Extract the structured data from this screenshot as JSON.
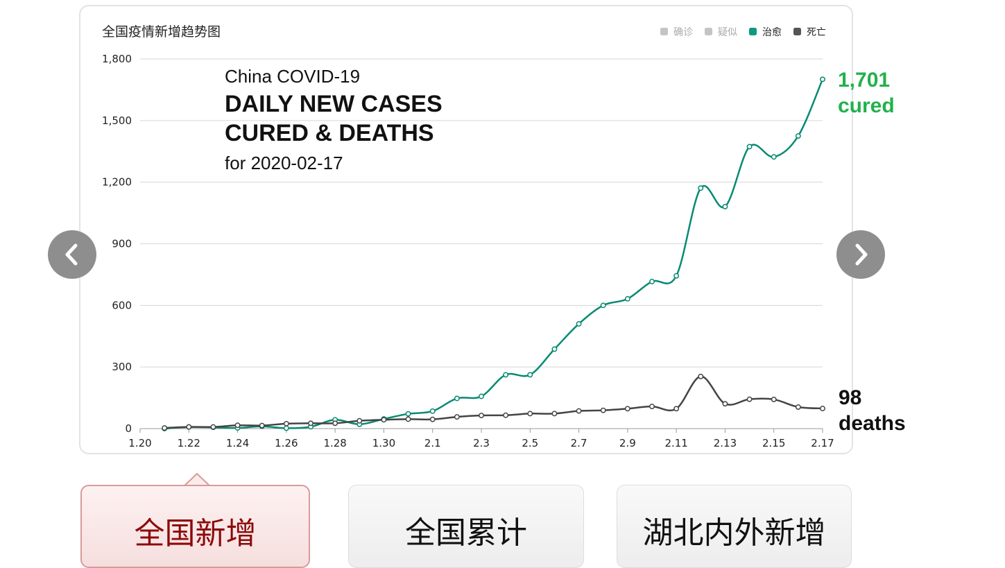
{
  "chart_data": {
    "type": "line",
    "title": "全国疫情新增趋势图",
    "annotation": {
      "line1": "China COVID-19",
      "line2": "DAILY NEW CASES",
      "line3": "CURED & DEATHS",
      "line4": "for 2020-02-17"
    },
    "x_tick_labels": [
      "1.20",
      "1.22",
      "1.24",
      "1.26",
      "1.28",
      "1.30",
      "2.1",
      "2.3",
      "2.5",
      "2.7",
      "2.9",
      "2.11",
      "2.13",
      "2.15",
      "2.17"
    ],
    "x": [
      "1.21",
      "1.22",
      "1.23",
      "1.24",
      "1.25",
      "1.26",
      "1.27",
      "1.28",
      "1.29",
      "1.30",
      "1.31",
      "2.1",
      "2.2",
      "2.3",
      "2.4",
      "2.5",
      "2.6",
      "2.7",
      "2.8",
      "2.9",
      "2.10",
      "2.11",
      "2.12",
      "2.13",
      "2.14",
      "2.15",
      "2.16",
      "2.17"
    ],
    "ylim": [
      0,
      1800
    ],
    "y_ticks": [
      {
        "value": 0,
        "label": "0"
      },
      {
        "value": 300,
        "label": "300"
      },
      {
        "value": 600,
        "label": "600"
      },
      {
        "value": 900,
        "label": "900"
      },
      {
        "value": 1200,
        "label": "1,200"
      },
      {
        "value": 1500,
        "label": "1,500"
      },
      {
        "value": 1800,
        "label": "1,800"
      }
    ],
    "grid": true,
    "legend": {
      "position": "top-right",
      "items": [
        {
          "name": "确诊",
          "color": "#c4c4c4",
          "active": false
        },
        {
          "name": "疑似",
          "color": "#c4c4c4",
          "active": false
        },
        {
          "name": "治愈",
          "color": "#0e9a7f",
          "active": true
        },
        {
          "name": "死亡",
          "color": "#555555",
          "active": true
        }
      ]
    },
    "series": [
      {
        "name": "治愈",
        "color": "#078a72",
        "values": [
          0,
          8,
          6,
          3,
          11,
          2,
          9,
          43,
          21,
          47,
          72,
          85,
          147,
          157,
          262,
          262,
          387,
          510,
          600,
          632,
          716,
          744,
          1171,
          1081,
          1373,
          1323,
          1425,
          1701
        ],
        "end_label": {
          "value": "1,701",
          "text": "cured",
          "color": "#22b14c"
        }
      },
      {
        "name": "死亡",
        "color": "#444444",
        "values": [
          3,
          8,
          8,
          16,
          15,
          24,
          26,
          26,
          38,
          43,
          46,
          45,
          57,
          64,
          65,
          73,
          73,
          86,
          89,
          97,
          108,
          97,
          254,
          121,
          143,
          142,
          105,
          98
        ],
        "end_label": {
          "value": "98",
          "text": "deaths",
          "color": "#111111"
        }
      }
    ]
  },
  "tabs": [
    {
      "label": "全国新增",
      "active": true
    },
    {
      "label": "全国累计",
      "active": false
    },
    {
      "label": "湖北内外新增",
      "active": false
    }
  ],
  "nav": {
    "prev_icon": "chevron-left-icon",
    "next_icon": "chevron-right-icon"
  }
}
